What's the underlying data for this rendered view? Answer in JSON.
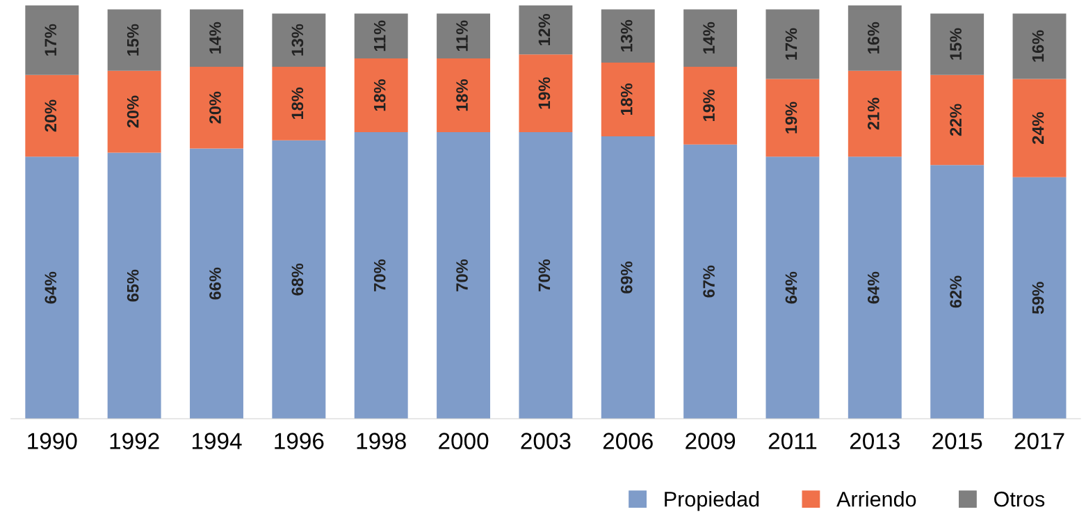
{
  "chart_data": {
    "type": "bar",
    "stacked": true,
    "legend": "bottom right",
    "grid": false,
    "tick_labels": "x",
    "categories": [
      "1990",
      "1992",
      "1994",
      "1996",
      "1998",
      "2000",
      "2003",
      "2006",
      "2009",
      "2011",
      "2013",
      "2015",
      "2017"
    ],
    "series": [
      {
        "name": "Propiedad",
        "color": "#7f9cc9",
        "values": [
          64,
          65,
          66,
          68,
          70,
          70,
          70,
          69,
          67,
          64,
          64,
          62,
          59
        ],
        "value_labels": [
          "64%",
          "65%",
          "66%",
          "68%",
          "70%",
          "70%",
          "70%",
          "69%",
          "67%",
          "64%",
          "64%",
          "62%",
          "59%"
        ]
      },
      {
        "name": "Arriendo",
        "color": "#f0714a",
        "values": [
          20,
          20,
          20,
          18,
          18,
          18,
          19,
          18,
          19,
          19,
          21,
          22,
          24
        ],
        "value_labels": [
          "20%",
          "20%",
          "20%",
          "18%",
          "18%",
          "18%",
          "19%",
          "18%",
          "19%",
          "19%",
          "21%",
          "22%",
          "24%"
        ]
      },
      {
        "name": "Otros",
        "color": "#7f7f7f",
        "values": [
          17,
          15,
          14,
          13,
          11,
          11,
          12,
          13,
          14,
          17,
          16,
          15,
          16
        ],
        "value_labels": [
          "17%",
          "15%",
          "14%",
          "13%",
          "11%",
          "11%",
          "12%",
          "13%",
          "14%",
          "17%",
          "16%",
          "15%",
          "16%"
        ]
      }
    ]
  }
}
